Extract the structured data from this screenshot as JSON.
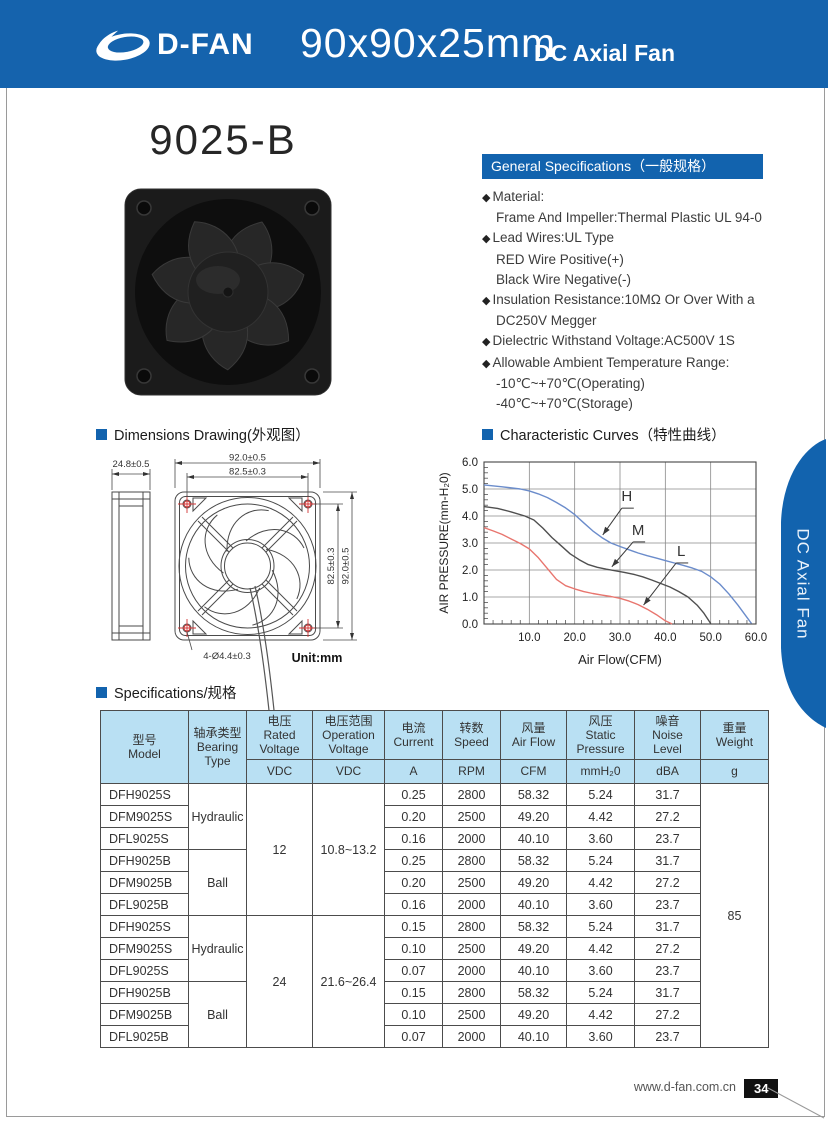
{
  "header": {
    "brand": "D-FAN",
    "size_title": "90x90x25mm",
    "subtitle": "DC Axial Fan"
  },
  "product": {
    "model": "9025-B"
  },
  "side_tab": {
    "label": "DC Axial Fan",
    "color": "#1263ae"
  },
  "general_specs": {
    "title": "General Specifications（一般规格）",
    "items": [
      {
        "bullet": true,
        "text": "Material:"
      },
      {
        "bullet": false,
        "text": "Frame And Impeller:Thermal Plastic UL 94-0"
      },
      {
        "bullet": true,
        "text": "Lead Wires:UL Type"
      },
      {
        "bullet": false,
        "text": "RED Wire Positive(+)"
      },
      {
        "bullet": false,
        "text": "Black Wire Negative(-)"
      },
      {
        "bullet": true,
        "text": "Insulation Resistance:10MΩ Or Over With a"
      },
      {
        "bullet": false,
        "text": "DC250V Megger"
      },
      {
        "bullet": true,
        "text": "Dielectric Withstand Voltage:AC500V 1S"
      },
      {
        "bullet": true,
        "text": "Allowable Ambient Temperature Range:"
      },
      {
        "bullet": false,
        "text": "-10℃~+70℃(Operating)"
      },
      {
        "bullet": false,
        "text": "-40℃~+70℃(Storage)"
      }
    ]
  },
  "dimensions": {
    "title": "Dimensions Drawing(外观图）",
    "unit_label": "Unit:mm",
    "dims": {
      "depth": "24.8±0.5",
      "width_outer": "92.0±0.5",
      "width_holes": "82.5±0.3",
      "height_holes": "82.5±0.3",
      "height_outer": "92.0±0.5",
      "holes": "4-Ø4.4±0.3"
    }
  },
  "chart_data": {
    "type": "line",
    "title": "Characteristic Curves（特性曲线）",
    "xlabel": "Air Flow(CFM)",
    "ylabel": "AIR PRESSURE(mm-H₂0)",
    "xlim": [
      0,
      60
    ],
    "ylim": [
      0,
      6
    ],
    "grid": true,
    "x_ticks": [
      10,
      20,
      30,
      40,
      50,
      60
    ],
    "y_ticks": [
      0,
      1,
      2,
      3,
      4,
      5,
      6
    ],
    "x_minor_step": 2,
    "y_minor_step": 0.2,
    "series": [
      {
        "name": "H",
        "color": "#6b8ccb",
        "points": [
          [
            0,
            5.15
          ],
          [
            4,
            5.08
          ],
          [
            8,
            5.0
          ],
          [
            10,
            4.93
          ],
          [
            12,
            4.82
          ],
          [
            14,
            4.68
          ],
          [
            16,
            4.5
          ],
          [
            18,
            4.3
          ],
          [
            20,
            4.05
          ],
          [
            22,
            3.75
          ],
          [
            24,
            3.45
          ],
          [
            26,
            3.2
          ],
          [
            28,
            3.0
          ],
          [
            30,
            2.87
          ],
          [
            32,
            2.75
          ],
          [
            34,
            2.63
          ],
          [
            36,
            2.53
          ],
          [
            38,
            2.44
          ],
          [
            40,
            2.35
          ],
          [
            42,
            2.26
          ],
          [
            44,
            2.17
          ],
          [
            46,
            2.07
          ],
          [
            48,
            1.95
          ],
          [
            50,
            1.75
          ],
          [
            52,
            1.48
          ],
          [
            54,
            1.12
          ],
          [
            56,
            0.7
          ],
          [
            58,
            0.25
          ],
          [
            59,
            0.02
          ]
        ]
      },
      {
        "name": "M",
        "color": "#4f4f4f",
        "points": [
          [
            0,
            4.35
          ],
          [
            3,
            4.28
          ],
          [
            6,
            4.15
          ],
          [
            9,
            4.0
          ],
          [
            11,
            3.85
          ],
          [
            13,
            3.55
          ],
          [
            15,
            3.2
          ],
          [
            17,
            2.9
          ],
          [
            19,
            2.6
          ],
          [
            21,
            2.38
          ],
          [
            23,
            2.2
          ],
          [
            25,
            2.1
          ],
          [
            27,
            2.03
          ],
          [
            29,
            1.97
          ],
          [
            31,
            1.91
          ],
          [
            33,
            1.84
          ],
          [
            35,
            1.75
          ],
          [
            37,
            1.63
          ],
          [
            39,
            1.5
          ],
          [
            41,
            1.37
          ],
          [
            43,
            1.2
          ],
          [
            45,
            1.0
          ],
          [
            47,
            0.7
          ],
          [
            48.5,
            0.4
          ],
          [
            50,
            0.02
          ]
        ]
      },
      {
        "name": "L",
        "color": "#e8756e",
        "points": [
          [
            0,
            3.57
          ],
          [
            2,
            3.45
          ],
          [
            4,
            3.32
          ],
          [
            6,
            3.15
          ],
          [
            8,
            2.98
          ],
          [
            10,
            2.78
          ],
          [
            12,
            2.45
          ],
          [
            14,
            2.05
          ],
          [
            16,
            1.65
          ],
          [
            18,
            1.42
          ],
          [
            20,
            1.3
          ],
          [
            22,
            1.2
          ],
          [
            24,
            1.13
          ],
          [
            26,
            1.07
          ],
          [
            28,
            1.02
          ],
          [
            30,
            0.95
          ],
          [
            32,
            0.85
          ],
          [
            34,
            0.72
          ],
          [
            36,
            0.55
          ],
          [
            38,
            0.35
          ],
          [
            40,
            0.12
          ],
          [
            41.5,
            0.0
          ]
        ]
      }
    ],
    "annotations": [
      {
        "text": "H",
        "at": [
          31.5,
          4.55
        ],
        "tip": [
          26.2,
          3.3
        ]
      },
      {
        "text": "M",
        "at": [
          34.0,
          3.3
        ],
        "tip": [
          28.2,
          2.12
        ]
      },
      {
        "text": "L",
        "at": [
          43.5,
          2.52
        ],
        "tip": [
          35.2,
          0.7
        ]
      }
    ]
  },
  "spec_table": {
    "section_title": "Specifications/规格",
    "columns": [
      {
        "cn": "型号",
        "en": "Model"
      },
      {
        "cn": "轴承类型",
        "en": "Bearing Type"
      },
      {
        "cn": "电压",
        "en": "Rated Voltage",
        "unit": "VDC"
      },
      {
        "cn": "电压范围",
        "en": "Operation Voltage",
        "unit": "VDC"
      },
      {
        "cn": "电流",
        "en": "Current",
        "unit": "A"
      },
      {
        "cn": "转数",
        "en": "Speed",
        "unit": "RPM"
      },
      {
        "cn": "风量",
        "en": "Air Flow",
        "unit": "CFM"
      },
      {
        "cn": "风压",
        "en": "Static Pressure",
        "unit": "mmH₂0"
      },
      {
        "cn": "噪音",
        "en": "Noise Level",
        "unit": "dBA"
      },
      {
        "cn": "重量",
        "en": "Weight",
        "unit": "g"
      }
    ],
    "weight": "85",
    "groups": [
      {
        "rated_voltage": "12",
        "operation_voltage": "10.8~13.2",
        "bearings": [
          {
            "type": "Hydraulic",
            "rows": [
              {
                "model": "DFH9025S",
                "current": "0.25",
                "speed": "2800",
                "air_flow": "58.32",
                "static_pressure": "5.24",
                "noise": "31.7"
              },
              {
                "model": "DFM9025S",
                "current": "0.20",
                "speed": "2500",
                "air_flow": "49.20",
                "static_pressure": "4.42",
                "noise": "27.2"
              },
              {
                "model": "DFL9025S",
                "current": "0.16",
                "speed": "2000",
                "air_flow": "40.10",
                "static_pressure": "3.60",
                "noise": "23.7"
              }
            ]
          },
          {
            "type": "Ball",
            "rows": [
              {
                "model": "DFH9025B",
                "current": "0.25",
                "speed": "2800",
                "air_flow": "58.32",
                "static_pressure": "5.24",
                "noise": "31.7"
              },
              {
                "model": "DFM9025B",
                "current": "0.20",
                "speed": "2500",
                "air_flow": "49.20",
                "static_pressure": "4.42",
                "noise": "27.2"
              },
              {
                "model": "DFL9025B",
                "current": "0.16",
                "speed": "2000",
                "air_flow": "40.10",
                "static_pressure": "3.60",
                "noise": "23.7"
              }
            ]
          }
        ]
      },
      {
        "rated_voltage": "24",
        "operation_voltage": "21.6~26.4",
        "bearings": [
          {
            "type": "Hydraulic",
            "rows": [
              {
                "model": "DFH9025S",
                "current": "0.15",
                "speed": "2800",
                "air_flow": "58.32",
                "static_pressure": "5.24",
                "noise": "31.7"
              },
              {
                "model": "DFM9025S",
                "current": "0.10",
                "speed": "2500",
                "air_flow": "49.20",
                "static_pressure": "4.42",
                "noise": "27.2"
              },
              {
                "model": "DFL9025S",
                "current": "0.07",
                "speed": "2000",
                "air_flow": "40.10",
                "static_pressure": "3.60",
                "noise": "23.7"
              }
            ]
          },
          {
            "type": "Ball",
            "rows": [
              {
                "model": "DFH9025B",
                "current": "0.15",
                "speed": "2800",
                "air_flow": "58.32",
                "static_pressure": "5.24",
                "noise": "31.7"
              },
              {
                "model": "DFM9025B",
                "current": "0.10",
                "speed": "2500",
                "air_flow": "49.20",
                "static_pressure": "4.42",
                "noise": "27.2"
              },
              {
                "model": "DFL9025B",
                "current": "0.07",
                "speed": "2000",
                "air_flow": "40.10",
                "static_pressure": "3.60",
                "noise": "23.7"
              }
            ]
          }
        ]
      }
    ]
  },
  "footer": {
    "website": "www.d-fan.com.cn",
    "page_number": "34"
  },
  "colors": {
    "header_blue": "#1563ad",
    "bar_blue": "#1263ae",
    "table_header_bg": "#b9e0f3",
    "curve_h": "#6b8ccb",
    "curve_m": "#4f4f4f",
    "curve_l": "#e8756e",
    "crosshair_red": "#d23333"
  }
}
